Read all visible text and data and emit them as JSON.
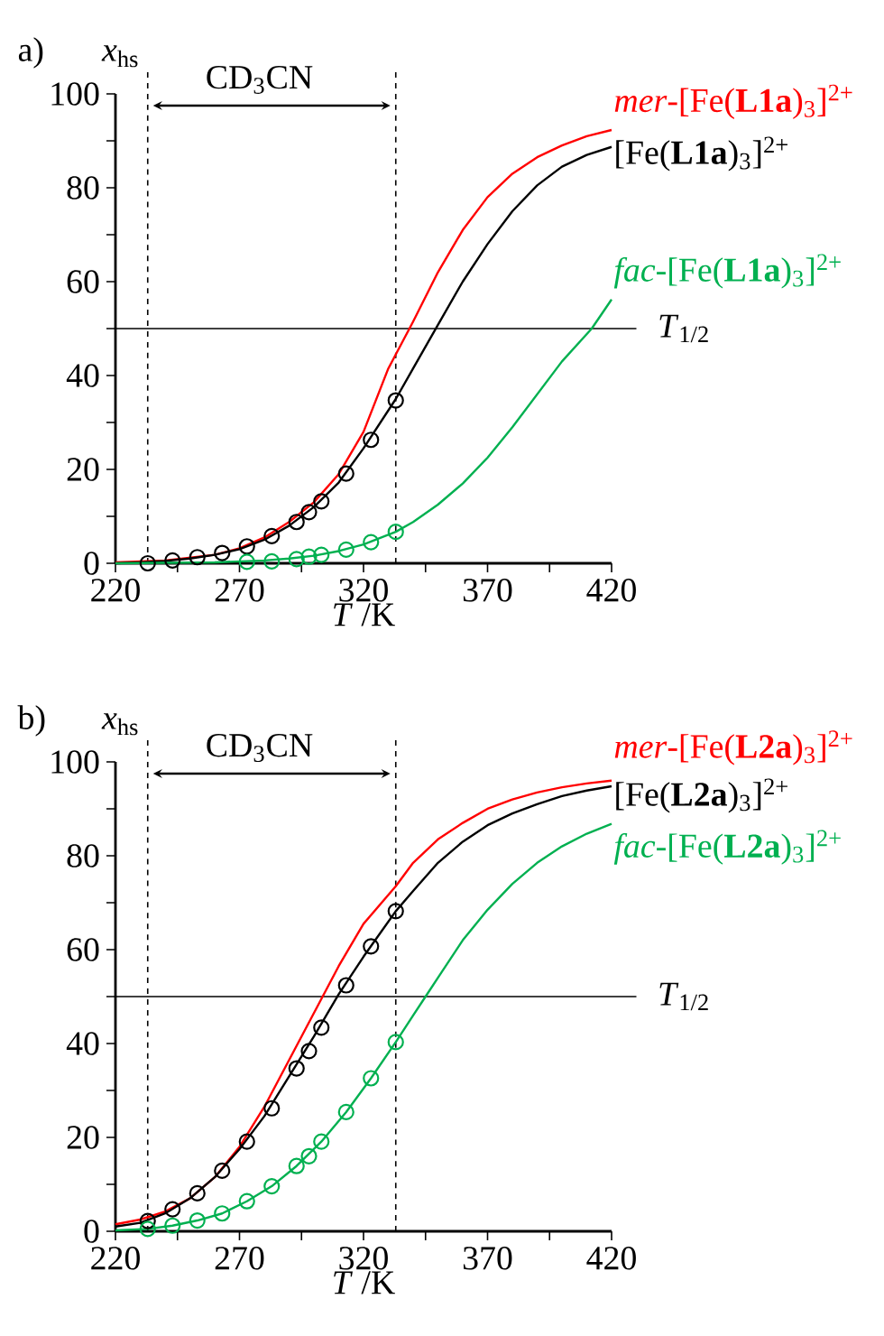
{
  "chart_data": [
    {
      "type": "line",
      "title": "a)",
      "xlabel": "*T* /K",
      "ylabel": "*x*$_{hs}$",
      "annotations": [
        "CD$_{3}$CN"
      ],
      "xlim": [
        220,
        420
      ],
      "xticks": [
        220,
        {
          "value": 245,
          "label": null
        },
        270,
        {
          "value": 295,
          "label": null
        },
        320,
        {
          "value": 345,
          "label": null
        },
        370,
        {
          "value": 395,
          "label": null
        },
        420
      ],
      "ylim": [
        0,
        100
      ],
      "yticks": [
        0,
        {
          "value": 10,
          "label": null
        },
        20,
        {
          "value": 30,
          "label": null
        },
        40,
        {
          "value": 50,
          "label": null
        },
        60,
        {
          "value": 70,
          "label": null
        },
        80,
        {
          "value": 90,
          "label": null
        },
        100
      ],
      "ref_lines": [
        {
          "axis": "x",
          "value": 233,
          "line_style": "dashed"
        },
        {
          "axis": "x",
          "value": 333,
          "line_style": "dashed"
        },
        {
          "axis": "y",
          "value": 50,
          "label": "*T*$_{1/2}$"
        }
      ],
      "series": [
        {
          "name": "*mer*-[Fe(**L1a**)$_{3}$]$^{2+}$",
          "color": "#ff0000",
          "marker": "none",
          "x": [
            220,
            240,
            260,
            270,
            280,
            290,
            300,
            310,
            320,
            330,
            340,
            350,
            360,
            370,
            380,
            390,
            400,
            410,
            420
          ],
          "values": [
            0.2,
            0.6,
            1.8,
            3.2,
            5.5,
            8.8,
            13,
            19,
            28,
            41.5,
            51.5,
            62,
            71,
            78,
            83,
            86.5,
            89,
            91,
            92.3
          ]
        },
        {
          "name": "[Fe(**L1a**)$_{3}$]$^{2+}$",
          "color": "#000000",
          "marker": "none",
          "x": [
            220,
            230,
            240,
            250,
            260,
            270,
            280,
            290,
            300,
            310,
            320,
            333,
            340,
            350,
            360,
            370,
            380,
            390,
            400,
            410,
            420
          ],
          "values": [
            0,
            0.2,
            0.5,
            1,
            1.8,
            3,
            5,
            8,
            12,
            17.2,
            24.5,
            35,
            41.5,
            50.8,
            60,
            68,
            75,
            80.5,
            84.5,
            87,
            88.7
          ]
        },
        {
          "name": "*fac*-[Fe(**L1a**)$_{3}$]$^{2+}$",
          "color": "#00b050",
          "marker": "none",
          "x": [
            220,
            240,
            260,
            280,
            290,
            300,
            310,
            320,
            333,
            340,
            350,
            360,
            370,
            380,
            390,
            400,
            412,
            420
          ],
          "values": [
            0,
            0.1,
            0.2,
            0.6,
            1,
            1.6,
            2.6,
            4,
            6.7,
            8.8,
            12.5,
            17,
            22.5,
            29,
            36,
            43,
            50,
            56.2
          ]
        },
        {
          "type": "scatter",
          "color": "#000000",
          "marker": "circle",
          "x": [
            233,
            243,
            253,
            263,
            273,
            283,
            293,
            298,
            303,
            313,
            323,
            333
          ],
          "values": [
            0,
            0.6,
            1.3,
            2.2,
            3.6,
            5.8,
            8.8,
            10.9,
            13.2,
            19.1,
            26.3,
            34.7
          ]
        },
        {
          "type": "scatter",
          "color": "#00b050",
          "marker": "circle",
          "x": [
            273,
            283,
            293,
            298,
            303,
            313,
            323,
            333
          ],
          "values": [
            0.3,
            0.4,
            0.9,
            1.4,
            1.8,
            2.9,
            4.5,
            6.7
          ]
        }
      ]
    },
    {
      "type": "line",
      "title": "b)",
      "xlabel": "*T* /K",
      "ylabel": "*x*$_{hs}$",
      "annotations": [
        "CD$_{3}$CN"
      ],
      "xlim": [
        220,
        420
      ],
      "xticks": [
        220,
        {
          "value": 245,
          "label": null
        },
        270,
        {
          "value": 295,
          "label": null
        },
        320,
        {
          "value": 345,
          "label": null
        },
        370,
        {
          "value": 395,
          "label": null
        },
        420
      ],
      "ylim": [
        0,
        100
      ],
      "yticks": [
        0,
        {
          "value": 10,
          "label": null
        },
        20,
        {
          "value": 30,
          "label": null
        },
        40,
        {
          "value": 50,
          "label": null
        },
        60,
        {
          "value": 70,
          "label": null
        },
        80,
        {
          "value": 90,
          "label": null
        },
        100
      ],
      "ref_lines": [
        {
          "axis": "x",
          "value": 233,
          "line_style": "dashed"
        },
        {
          "axis": "x",
          "value": 333,
          "line_style": "dashed"
        },
        {
          "axis": "y",
          "value": 50,
          "label": "*T*$_{1/2}$"
        }
      ],
      "series": [
        {
          "name": "*mer*-[Fe(**L2a**)$_{3}$]$^{2+}$",
          "color": "#ff0000",
          "marker": "none",
          "x": [
            220,
            230,
            240,
            250,
            260,
            270,
            280,
            290,
            300,
            310,
            320,
            333,
            340,
            350,
            360,
            370,
            380,
            390,
            400,
            410,
            420
          ],
          "values": [
            1.5,
            2.5,
            4.2,
            7,
            11.5,
            18,
            26.5,
            36.5,
            46.5,
            56.5,
            65.5,
            73.5,
            78.5,
            83.5,
            87,
            90,
            92,
            93.5,
            94.6,
            95.4,
            96
          ]
        },
        {
          "name": "[Fe(**L2a**)$_{3}$]$^{2+}$",
          "color": "#000000",
          "marker": "none",
          "x": [
            220,
            230,
            240,
            250,
            260,
            270,
            280,
            290,
            300,
            310,
            320,
            333,
            340,
            350,
            360,
            370,
            380,
            390,
            400,
            410,
            420
          ],
          "values": [
            1,
            1.8,
            3.8,
            7,
            11.5,
            17.5,
            24.5,
            33,
            41.5,
            50.5,
            58.5,
            68.2,
            72.5,
            78.5,
            83,
            86.5,
            89,
            91,
            92.7,
            93.9,
            94.8
          ]
        },
        {
          "name": "*fac*-[Fe(**L2a**)$_{3}$]$^{2+}$",
          "color": "#00b050",
          "marker": "none",
          "x": [
            220,
            233,
            243,
            253,
            263,
            273,
            283,
            293,
            303,
            313,
            323,
            333,
            340,
            345,
            350,
            360,
            370,
            380,
            390,
            400,
            410,
            420
          ],
          "values": [
            0.2,
            0.5,
            1.2,
            2.3,
            3.8,
            6.4,
            9.6,
            13.9,
            19.1,
            25.4,
            32.6,
            40.3,
            46,
            50,
            54,
            62,
            68.5,
            74,
            78.5,
            82,
            84.7,
            86.8
          ]
        },
        {
          "type": "scatter",
          "color": "#000000",
          "marker": "circle",
          "x": [
            233,
            243,
            253,
            263,
            273,
            283,
            293,
            298,
            303,
            313,
            323,
            333
          ],
          "values": [
            2.2,
            4.7,
            8.1,
            12.9,
            19.1,
            26.2,
            34.7,
            38.4,
            43.4,
            52.4,
            60.7,
            68.2
          ]
        },
        {
          "type": "scatter",
          "color": "#00b050",
          "marker": "circle",
          "x": [
            233,
            243,
            253,
            263,
            273,
            283,
            293,
            298,
            303,
            313,
            323,
            333
          ],
          "values": [
            0.5,
            1.2,
            2.3,
            3.8,
            6.4,
            9.6,
            13.9,
            16,
            19.1,
            25.4,
            32.6,
            40.3
          ]
        }
      ]
    }
  ]
}
